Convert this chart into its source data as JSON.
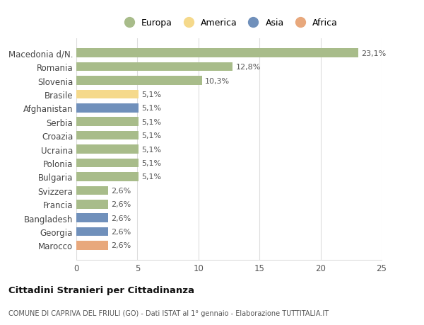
{
  "categories": [
    "Marocco",
    "Georgia",
    "Bangladesh",
    "Francia",
    "Svizzera",
    "Bulgaria",
    "Polonia",
    "Ucraina",
    "Croazia",
    "Serbia",
    "Afghanistan",
    "Brasile",
    "Slovenia",
    "Romania",
    "Macedonia d/N."
  ],
  "values": [
    2.6,
    2.6,
    2.6,
    2.6,
    2.6,
    5.1,
    5.1,
    5.1,
    5.1,
    5.1,
    5.1,
    5.1,
    10.3,
    12.8,
    23.1
  ],
  "bar_colors": [
    "#e8a87c",
    "#7090bb",
    "#7090bb",
    "#a8bc8a",
    "#a8bc8a",
    "#a8bc8a",
    "#a8bc8a",
    "#a8bc8a",
    "#a8bc8a",
    "#a8bc8a",
    "#7090bb",
    "#f5d98b",
    "#a8bc8a",
    "#a8bc8a",
    "#a8bc8a"
  ],
  "labels": [
    "2,6%",
    "2,6%",
    "2,6%",
    "2,6%",
    "2,6%",
    "5,1%",
    "5,1%",
    "5,1%",
    "5,1%",
    "5,1%",
    "5,1%",
    "5,1%",
    "10,3%",
    "12,8%",
    "23,1%"
  ],
  "legend": [
    {
      "label": "Europa",
      "color": "#a8bc8a"
    },
    {
      "label": "America",
      "color": "#f5d98b"
    },
    {
      "label": "Asia",
      "color": "#7090bb"
    },
    {
      "label": "Africa",
      "color": "#e8a87c"
    }
  ],
  "title": "Cittadini Stranieri per Cittadinanza",
  "subtitle": "COMUNE DI CAPRIVA DEL FRIULI (GO) - Dati ISTAT al 1° gennaio - Elaborazione TUTTITALIA.IT",
  "xlim": [
    0,
    25
  ],
  "xticks": [
    0,
    5,
    10,
    15,
    20,
    25
  ],
  "background_color": "#ffffff",
  "grid_color": "#dddddd"
}
